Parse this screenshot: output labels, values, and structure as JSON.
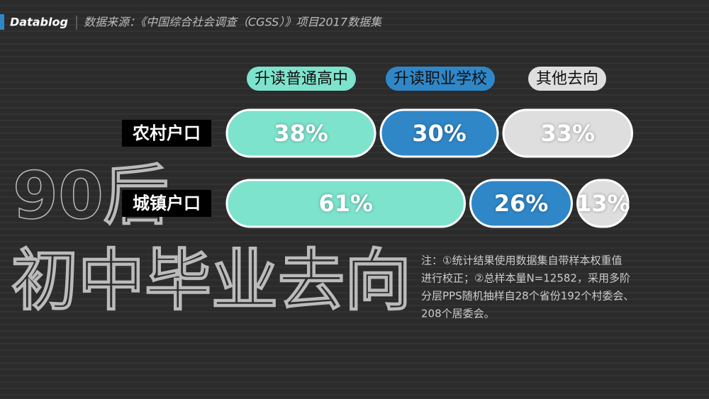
{
  "chart_data": {
    "type": "stacked-pill-bar",
    "brand": "Datablog",
    "source": "数据来源：《中国综合社会调查（CGSS）》项目2017数据集",
    "title_top": "90后",
    "title_bottom": "初中毕业去向",
    "categories": [
      "农村户口",
      "城镇户口"
    ],
    "series": [
      {
        "name": "升读普通高中",
        "color": "#7de3cd",
        "values": [
          38,
          61
        ],
        "value_labels": [
          "38%",
          "61%"
        ]
      },
      {
        "name": "升读职业学校",
        "color": "#2f87c8",
        "values": [
          30,
          26
        ],
        "value_labels": [
          "30%",
          "26%"
        ]
      },
      {
        "name": "其他去向",
        "color": "#dedede",
        "values": [
          33,
          13
        ],
        "value_labels": [
          "33%",
          "13%"
        ]
      }
    ],
    "note": [
      "注：①统计结果使用数据集自带样本权重值",
      "进行校正；②总样本量N=12582，采用多阶",
      "分层PPS随机抽样自28个省份192个村委会、",
      "208个居委会。"
    ]
  }
}
